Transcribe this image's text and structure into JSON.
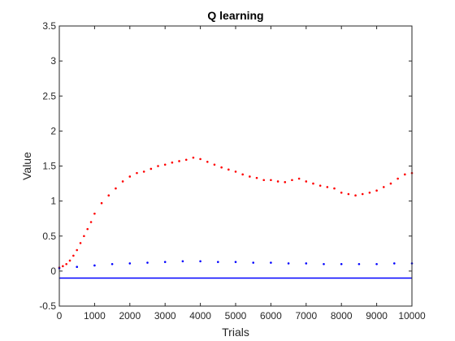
{
  "chart_data": {
    "type": "scatter",
    "title": "Q learning",
    "xlabel": "Trials",
    "ylabel": "Value",
    "xlim": [
      0,
      10000
    ],
    "ylim": [
      -0.5,
      3.5
    ],
    "xticks": [
      0,
      1000,
      2000,
      3000,
      4000,
      5000,
      6000,
      7000,
      8000,
      9000,
      10000
    ],
    "yticks": [
      -0.5,
      0,
      0.5,
      1,
      1.5,
      2,
      2.5,
      3,
      3.5
    ],
    "grid": false,
    "legend": "none",
    "colors": {
      "red": "#ff0000",
      "blue": "#0000ff",
      "axis": "#262626"
    },
    "series": [
      {
        "color": "red",
        "marker": "dot",
        "x": [
          0,
          100,
          200,
          300,
          400,
          500,
          600,
          700,
          800,
          900,
          1000,
          1200,
          1400,
          1600,
          1800,
          2000,
          2200,
          2400,
          2600,
          2800,
          3000,
          3200,
          3400,
          3600,
          3800,
          4000,
          4200,
          4400,
          4600,
          4800,
          5000,
          5200,
          5400,
          5600,
          5800,
          6000,
          6200,
          6400,
          6600,
          6800,
          7000,
          7200,
          7400,
          7600,
          7800,
          8000,
          8200,
          8400,
          8600,
          8800,
          9000,
          9200,
          9400,
          9600,
          9800,
          10000
        ],
        "y": [
          0.05,
          0.07,
          0.1,
          0.15,
          0.22,
          0.3,
          0.4,
          0.5,
          0.6,
          0.7,
          0.82,
          0.97,
          1.08,
          1.18,
          1.28,
          1.35,
          1.4,
          1.42,
          1.46,
          1.5,
          1.52,
          1.55,
          1.57,
          1.59,
          1.62,
          1.6,
          1.56,
          1.52,
          1.48,
          1.45,
          1.42,
          1.38,
          1.35,
          1.33,
          1.3,
          1.3,
          1.28,
          1.27,
          1.3,
          1.32,
          1.28,
          1.25,
          1.22,
          1.2,
          1.18,
          1.12,
          1.1,
          1.08,
          1.1,
          1.12,
          1.15,
          1.2,
          1.25,
          1.32,
          1.38,
          1.4
        ]
      },
      {
        "color": "blue",
        "marker": "dot",
        "x": [
          0,
          500,
          1000,
          1500,
          2000,
          2500,
          3000,
          3500,
          4000,
          4500,
          5000,
          5500,
          6000,
          6500,
          7000,
          7500,
          8000,
          8500,
          9000,
          9500,
          10000
        ],
        "y": [
          0.04,
          0.06,
          0.08,
          0.1,
          0.11,
          0.12,
          0.13,
          0.14,
          0.14,
          0.13,
          0.13,
          0.12,
          0.12,
          0.11,
          0.11,
          0.1,
          0.1,
          0.1,
          0.1,
          0.11,
          0.11
        ]
      },
      {
        "color": "blue",
        "marker": "line",
        "x": [
          0,
          10000
        ],
        "y": [
          -0.1,
          -0.1
        ]
      }
    ]
  }
}
